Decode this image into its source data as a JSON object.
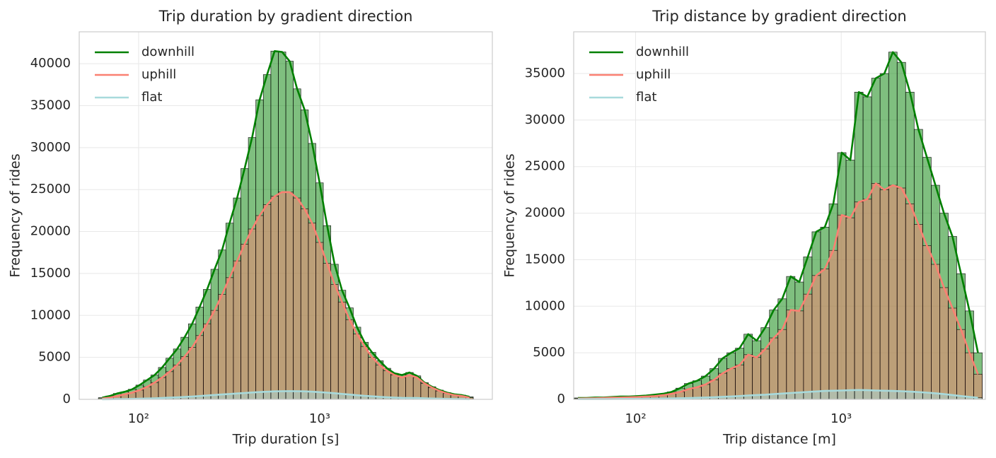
{
  "chart_data": [
    {
      "type": "histogram",
      "title": "Trip duration by gradient direction",
      "x_label": "Trip duration [s]",
      "y_label": "Frequency of rides",
      "log_x": true,
      "grid": true,
      "legend": "upper left",
      "xlim": [
        47,
        8980
      ],
      "ylim": [
        0,
        43800
      ],
      "xticks": [
        {
          "value": 100,
          "label": "10²"
        },
        {
          "value": 1000,
          "label": "10³"
        }
      ],
      "yticks": [
        0,
        5000,
        10000,
        15000,
        20000,
        25000,
        30000,
        35000,
        40000
      ],
      "bins": [
        60,
        66,
        72.6,
        79.9,
        87.8,
        96.6,
        106.3,
        116.9,
        128.6,
        141.5,
        155.6,
        171.2,
        188.3,
        207.1,
        227.8,
        250.6,
        275.7,
        303.3,
        333.6,
        367.0,
        403.6,
        444.0,
        488.4,
        537.3,
        591.0,
        650.1,
        715.1,
        786.6,
        865.3,
        951.8,
        1047.0,
        1151.7,
        1266.8,
        1393.5,
        1532.9,
        1686.1,
        1854.8,
        2040.2,
        2244.3,
        2468.7,
        2715.6,
        2987.1,
        3285.8,
        3614.4,
        3975.8,
        4373.4,
        4810.8,
        5291.8,
        5821.0,
        6403.1,
        7043.5
      ],
      "series": [
        {
          "name": "downhill",
          "color": "#008000",
          "values": [
            200,
            400,
            700,
            900,
            1200,
            1700,
            2300,
            2900,
            3800,
            4900,
            6000,
            7400,
            9000,
            11000,
            13100,
            15500,
            17800,
            21000,
            24000,
            27500,
            31200,
            35700,
            38700,
            41500,
            41400,
            40300,
            37000,
            34500,
            30500,
            25800,
            20700,
            16100,
            13000,
            10900,
            8600,
            6800,
            5600,
            4600,
            3700,
            3100,
            2900,
            3200,
            2800,
            2000,
            1500,
            1100,
            800,
            600,
            500,
            300
          ]
        },
        {
          "name": "uphill",
          "color": "#fa8072",
          "values": [
            100,
            200,
            400,
            600,
            800,
            1100,
            1500,
            2000,
            2600,
            3300,
            4100,
            5100,
            6200,
            7600,
            9000,
            10600,
            12500,
            14500,
            16500,
            18500,
            20300,
            21900,
            23200,
            24200,
            24700,
            24700,
            24000,
            22700,
            21000,
            18700,
            16200,
            13700,
            11600,
            9500,
            7800,
            6300,
            5000,
            4100,
            3400,
            2900,
            2600,
            2900,
            2600,
            1900,
            1400,
            1000,
            700,
            500,
            400,
            200
          ]
        },
        {
          "name": "flat",
          "color": "#a8dadc",
          "values": [
            10,
            20,
            30,
            40,
            60,
            80,
            100,
            130,
            160,
            200,
            240,
            290,
            340,
            400,
            460,
            520,
            580,
            640,
            700,
            760,
            820,
            870,
            910,
            950,
            970,
            980,
            970,
            950,
            910,
            860,
            800,
            730,
            650,
            570,
            490,
            420,
            360,
            300,
            250,
            210,
            180,
            170,
            160,
            130,
            100,
            80,
            60,
            40,
            30,
            20
          ]
        }
      ]
    },
    {
      "type": "histogram",
      "title": "Trip distance by gradient direction",
      "x_label": "Trip distance [m]",
      "y_label": "Frequency of rides",
      "log_x": true,
      "grid": true,
      "legend": "upper left",
      "xlim": [
        50,
        5025
      ],
      "ylim": [
        0,
        39480
      ],
      "xticks": [
        {
          "value": 100,
          "label": "10²"
        },
        {
          "value": 1000,
          "label": "10³"
        }
      ],
      "yticks": [
        0,
        5000,
        10000,
        15000,
        20000,
        25000,
        30000,
        35000
      ],
      "bins": [
        50,
        55,
        60.5,
        66.6,
        73.2,
        80.5,
        88.6,
        97.4,
        107.2,
        117.9,
        129.7,
        142.7,
        156.9,
        172.6,
        189.9,
        208.9,
        229.7,
        252.7,
        278.0,
        305.8,
        336.4,
        370.0,
        407.0,
        447.7,
        492.5,
        541.7,
        595.9,
        655.5,
        721.0,
        793.2,
        872.5,
        959.7,
        1055.7,
        1161.3,
        1277.4,
        1405.1,
        1545.6,
        1701.2,
        1870.2,
        2057.2,
        2263.0,
        2489.3,
        2738.2,
        3012.0,
        3313.2,
        3644.5,
        4009.0,
        4409.9,
        4850.9
      ],
      "series": [
        {
          "name": "downhill",
          "color": "#008000",
          "values": [
            150,
            150,
            200,
            200,
            250,
            300,
            300,
            350,
            400,
            500,
            600,
            800,
            1200,
            1700,
            2000,
            2500,
            3300,
            4400,
            5000,
            5500,
            7000,
            6300,
            7700,
            9600,
            10800,
            13200,
            12600,
            15300,
            18000,
            18500,
            21000,
            26500,
            25700,
            33000,
            32500,
            34500,
            35000,
            37300,
            36200,
            33000,
            29000,
            26000,
            23000,
            20000,
            17500,
            13500,
            9500,
            5000
          ]
        },
        {
          "name": "uphill",
          "color": "#fa8072",
          "values": [
            80,
            100,
            120,
            150,
            180,
            200,
            220,
            250,
            300,
            350,
            450,
            600,
            800,
            1100,
            1300,
            1600,
            2100,
            2800,
            3300,
            3700,
            4800,
            4500,
            5400,
            6600,
            7500,
            9600,
            9500,
            11300,
            13300,
            14000,
            16000,
            19800,
            19500,
            21200,
            21500,
            23200,
            22500,
            23000,
            22700,
            21000,
            18800,
            16500,
            14500,
            12000,
            9800,
            7500,
            5000,
            2700
          ]
        },
        {
          "name": "flat",
          "color": "#a8dadc",
          "values": [
            20,
            20,
            30,
            30,
            40,
            50,
            50,
            60,
            70,
            80,
            90,
            100,
            120,
            140,
            170,
            200,
            230,
            270,
            310,
            360,
            420,
            460,
            500,
            560,
            620,
            680,
            740,
            800,
            850,
            900,
            930,
            950,
            980,
            1000,
            980,
            950,
            930,
            900,
            870,
            830,
            780,
            720,
            650,
            560,
            460,
            360,
            260,
            170
          ]
        }
      ]
    }
  ]
}
